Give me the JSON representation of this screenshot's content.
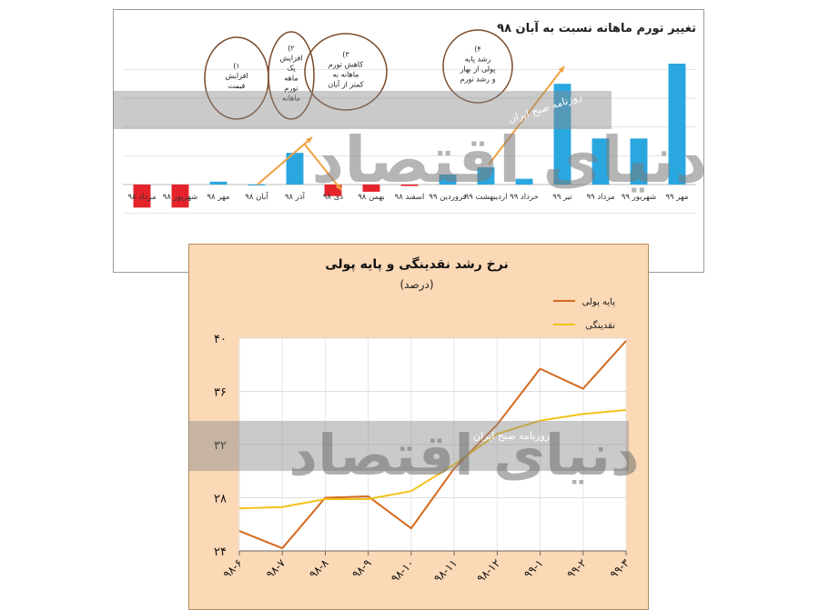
{
  "chart_data": [
    {
      "type": "bar",
      "title": "تغییر تورم ماهانه نسبت به آبان ۹۸",
      "categories": [
        "مهر ۹۹",
        "شهریور ۹۹",
        "مرداد ۹۹",
        "تیر ۹۹",
        "خرداد ۹۹",
        "اردیبهشت ۹۹",
        "فروردین ۹۹",
        "اسفند ۹۸",
        "بهمن ۹۸",
        "دی ۹۸",
        "آذر ۹۸",
        "آبان ۹۸",
        "مهر ۹۸",
        "شهریور ۹۸",
        "مرداد ۹۸"
      ],
      "values": [
        4.2,
        1.6,
        1.6,
        3.5,
        0.2,
        0.6,
        0.35,
        -0.05,
        -0.25,
        -0.4,
        1.1,
        0.0,
        0.1,
        -0.8,
        -0.8
      ],
      "ylim": [
        -1.2,
        4.8
      ],
      "grid": true,
      "colors": {
        "positive": "#2aa7df",
        "negative": "#e4232a"
      },
      "annotations": [
        {
          "label": "(۱\nافزایش\nقیمت"
        },
        {
          "label": "(۲\nافزایش\nیک\nماهه\nتورم\nماهانه"
        },
        {
          "label": "(۳\nکاهش تورم\nماهانه به\nکمتر از آبان"
        },
        {
          "label": "(۴\nرشد پایه\nپولی از بهار\nو رشد تورم"
        }
      ],
      "arrow_color": "#f0a040"
    },
    {
      "type": "line",
      "title": "نرخ رشد نقدینگی و پایه پولی",
      "subtitle": "(درصد)",
      "x": [
        "۹۸-۶",
        "۹۸-۷",
        "۹۸-۸",
        "۹۸-۹",
        "۹۸-۱۰",
        "۹۸-۱۱",
        "۹۸-۱۲",
        "۹۹-۱",
        "۹۹-۲",
        "۹۹-۳"
      ],
      "yticks": [
        "۲۴",
        "۲۸",
        "۳۲",
        "۳۶",
        "۴۰"
      ],
      "ylim": [
        24,
        40
      ],
      "series": [
        {
          "name": "پایه پولی",
          "color": "#d46a1e",
          "values": [
            25.5,
            24.2,
            28.0,
            28.1,
            25.7,
            30.2,
            33.5,
            37.7,
            36.2,
            39.8
          ]
        },
        {
          "name": "نقدینگی",
          "color": "#f2c21b",
          "values": [
            27.2,
            27.3,
            27.9,
            27.9,
            28.5,
            30.5,
            32.8,
            33.8,
            34.3,
            34.6
          ]
        }
      ],
      "legend_position": "top-right",
      "grid": true
    }
  ],
  "watermark": {
    "brand": "دنیای اقتصاد",
    "tagline": "روزنامه صبح ایران"
  }
}
